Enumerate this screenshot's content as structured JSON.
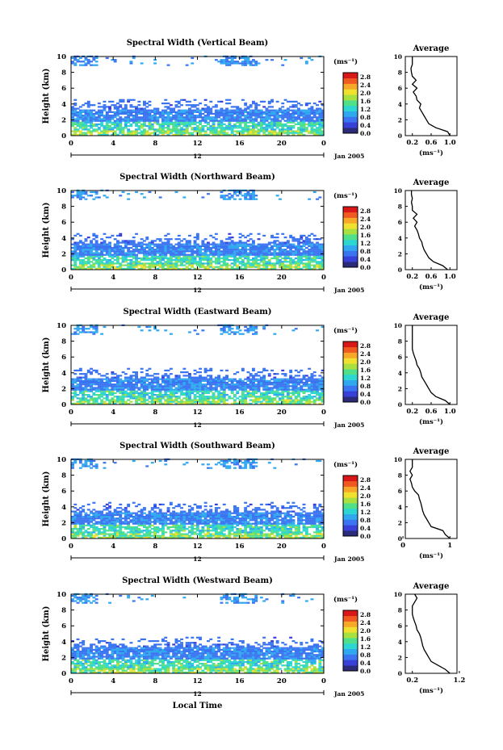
{
  "chart_data": [
    {
      "type": "heatmap",
      "title": "Spectral Width (Vertical Beam)",
      "ylabel": "Height (km)",
      "xticks": [
        "0",
        "4",
        "8",
        "12",
        "16",
        "20",
        "0"
      ],
      "ylim": [
        0,
        10
      ],
      "yticks": [
        "0",
        "2",
        "4",
        "6",
        "8",
        "10"
      ],
      "xlim": [
        0,
        24
      ],
      "date_label": "Jan 2005",
      "day_marker": "12",
      "colorbar": {
        "unit": "(ms⁻¹)",
        "ticks": [
          "0.0",
          "0.4",
          "0.8",
          "1.2",
          "1.6",
          "2.0",
          "2.4",
          "2.8"
        ],
        "range": [
          0,
          3.0
        ]
      },
      "profile": {
        "title": "Average",
        "xlabel": "(ms⁻¹)",
        "xticks": [
          "0.2",
          "0.6",
          "1.0"
        ],
        "heights": [
          0,
          0.5,
          1,
          1.5,
          2,
          2.5,
          3,
          3.5,
          4,
          4.5,
          5,
          5.5,
          6,
          6.5,
          7,
          7.5,
          8,
          8.5,
          9,
          9.5,
          10
        ],
        "values": [
          1.0,
          0.95,
          0.7,
          0.55,
          0.5,
          0.45,
          0.4,
          0.35,
          0.38,
          0.3,
          0.28,
          0.22,
          0.3,
          0.2,
          0.28,
          0.2,
          0.18,
          0.17,
          0.2,
          0.2,
          0.2
        ]
      }
    },
    {
      "type": "heatmap",
      "title": "Spectral Width (Northward Beam)",
      "ylabel": "Height (km)",
      "xticks": [
        "0",
        "4",
        "8",
        "12",
        "16",
        "20",
        "0"
      ],
      "yticks": [
        "0",
        "2",
        "4",
        "6",
        "8",
        "10"
      ],
      "ylim": [
        0,
        10
      ],
      "xlim": [
        0,
        24
      ],
      "date_label": "Jan 2005",
      "day_marker": "12",
      "colorbar": {
        "unit": "(ms⁻¹)",
        "ticks": [
          "0.0",
          "0.4",
          "0.8",
          "1.2",
          "1.6",
          "2.0",
          "2.4",
          "2.8"
        ],
        "range": [
          0,
          3.0
        ]
      },
      "profile": {
        "title": "Average",
        "xlabel": "(ms⁻¹)",
        "xticks": [
          "0.2",
          "0.6",
          "1.0"
        ],
        "heights": [
          0,
          0.5,
          1,
          1.5,
          2,
          2.5,
          3,
          3.5,
          4,
          4.5,
          5,
          5.5,
          6,
          6.5,
          7,
          7.5,
          8,
          8.5,
          9,
          9.5,
          10
        ],
        "values": [
          0.95,
          0.85,
          0.65,
          0.55,
          0.5,
          0.45,
          0.42,
          0.4,
          0.35,
          0.33,
          0.3,
          0.25,
          0.3,
          0.22,
          0.3,
          0.2,
          0.2,
          0.18,
          0.2,
          0.18,
          0.18
        ]
      }
    },
    {
      "type": "heatmap",
      "title": "Spectral Width (Eastward Beam)",
      "ylabel": "Height (km)",
      "xticks": [
        "0",
        "4",
        "8",
        "12",
        "16",
        "20",
        "0"
      ],
      "yticks": [
        "0",
        "2",
        "4",
        "6",
        "8",
        "10"
      ],
      "ylim": [
        0,
        10
      ],
      "xlim": [
        0,
        24
      ],
      "date_label": "Jan 2005",
      "day_marker": "12",
      "colorbar": {
        "unit": "(ms⁻¹)",
        "ticks": [
          "0.0",
          "0.4",
          "0.8",
          "1.2",
          "1.6",
          "2.0",
          "2.4",
          "2.8"
        ],
        "range": [
          0,
          3.0
        ]
      },
      "profile": {
        "title": "Average",
        "xlabel": "(ms⁻¹)",
        "xticks": [
          "0.2",
          "0.6",
          "1.0"
        ],
        "heights": [
          0,
          0.5,
          1,
          1.5,
          2,
          2.5,
          3,
          3.5,
          4,
          4.5,
          5,
          5.5,
          6,
          6.5,
          7,
          7.5,
          8,
          8.5,
          9,
          9.5,
          10
        ],
        "values": [
          1.0,
          0.9,
          0.7,
          0.6,
          0.55,
          0.5,
          0.45,
          0.4,
          0.38,
          0.35,
          0.3,
          0.28,
          0.25,
          0.22,
          0.2,
          0.2,
          0.2,
          0.2,
          0.2,
          0.2,
          0.2
        ]
      }
    },
    {
      "type": "heatmap",
      "title": "Spectral Width (Southward Beam)",
      "ylabel": "Height (km)",
      "xticks": [
        "0",
        "4",
        "8",
        "12",
        "16",
        "20",
        "0"
      ],
      "yticks": [
        "0",
        "2",
        "4",
        "6",
        "8",
        "10"
      ],
      "ylim": [
        0,
        10
      ],
      "xlim": [
        0,
        24
      ],
      "date_label": "Jan 2005",
      "day_marker": "12",
      "colorbar": {
        "unit": "(ms⁻¹)",
        "ticks": [
          "0.0",
          "0.4",
          "0.8",
          "1.2",
          "1.6",
          "2.0",
          "2.4",
          "2.8"
        ],
        "range": [
          0,
          3.0
        ]
      },
      "profile": {
        "title": "Average",
        "xlabel": "(ms⁻¹)",
        "xticks": [
          "0",
          "1"
        ],
        "heights": [
          0,
          0.5,
          1,
          1.5,
          2,
          2.5,
          3,
          3.5,
          4,
          4.5,
          5,
          5.5,
          6,
          6.5,
          7,
          7.5,
          8,
          8.5,
          9,
          9.5,
          10
        ],
        "values": [
          1.0,
          0.9,
          0.85,
          0.6,
          0.55,
          0.5,
          0.45,
          0.42,
          0.4,
          0.38,
          0.35,
          0.33,
          0.25,
          0.2,
          0.18,
          0.15,
          0.2,
          0.15,
          0.2,
          0.2,
          0.2
        ]
      }
    },
    {
      "type": "heatmap",
      "title": "Spectral Width (Westward Beam)",
      "ylabel": "Height (km)",
      "xlabel": "Local Time",
      "xticks": [
        "0",
        "4",
        "8",
        "12",
        "16",
        "20",
        "0"
      ],
      "yticks": [
        "0",
        "2",
        "4",
        "6",
        "8",
        "10"
      ],
      "ylim": [
        0,
        10
      ],
      "xlim": [
        0,
        24
      ],
      "date_label": "Jan 2005",
      "day_marker": "12",
      "colorbar": {
        "unit": "(ms⁻¹)",
        "ticks": [
          "0.0",
          "0.4",
          "0.8",
          "1.2",
          "1.6",
          "2.0",
          "2.4",
          "2.8"
        ],
        "range": [
          0,
          3.0
        ]
      },
      "profile": {
        "title": "Average",
        "xlabel": "(ms⁻¹)",
        "xticks": [
          "0.2",
          "1.2"
        ],
        "heights": [
          0,
          0.5,
          1,
          1.5,
          2,
          2.5,
          3,
          3.5,
          4,
          4.5,
          5,
          5.5,
          6,
          6.5,
          7,
          7.5,
          8,
          8.5,
          9,
          9.5,
          10
        ],
        "values": [
          1.0,
          0.9,
          0.75,
          0.6,
          0.55,
          0.5,
          0.45,
          0.42,
          0.4,
          0.38,
          0.35,
          0.3,
          0.28,
          0.25,
          0.22,
          0.2,
          0.2,
          0.2,
          0.25,
          0.3,
          0.25
        ]
      }
    }
  ],
  "colormap": [
    "#2b2b7a",
    "#3840d8",
    "#3a74f0",
    "#30a8f0",
    "#2dd6d0",
    "#50e08a",
    "#a8e040",
    "#f0e030",
    "#f8a828",
    "#f05a20",
    "#d81818"
  ]
}
